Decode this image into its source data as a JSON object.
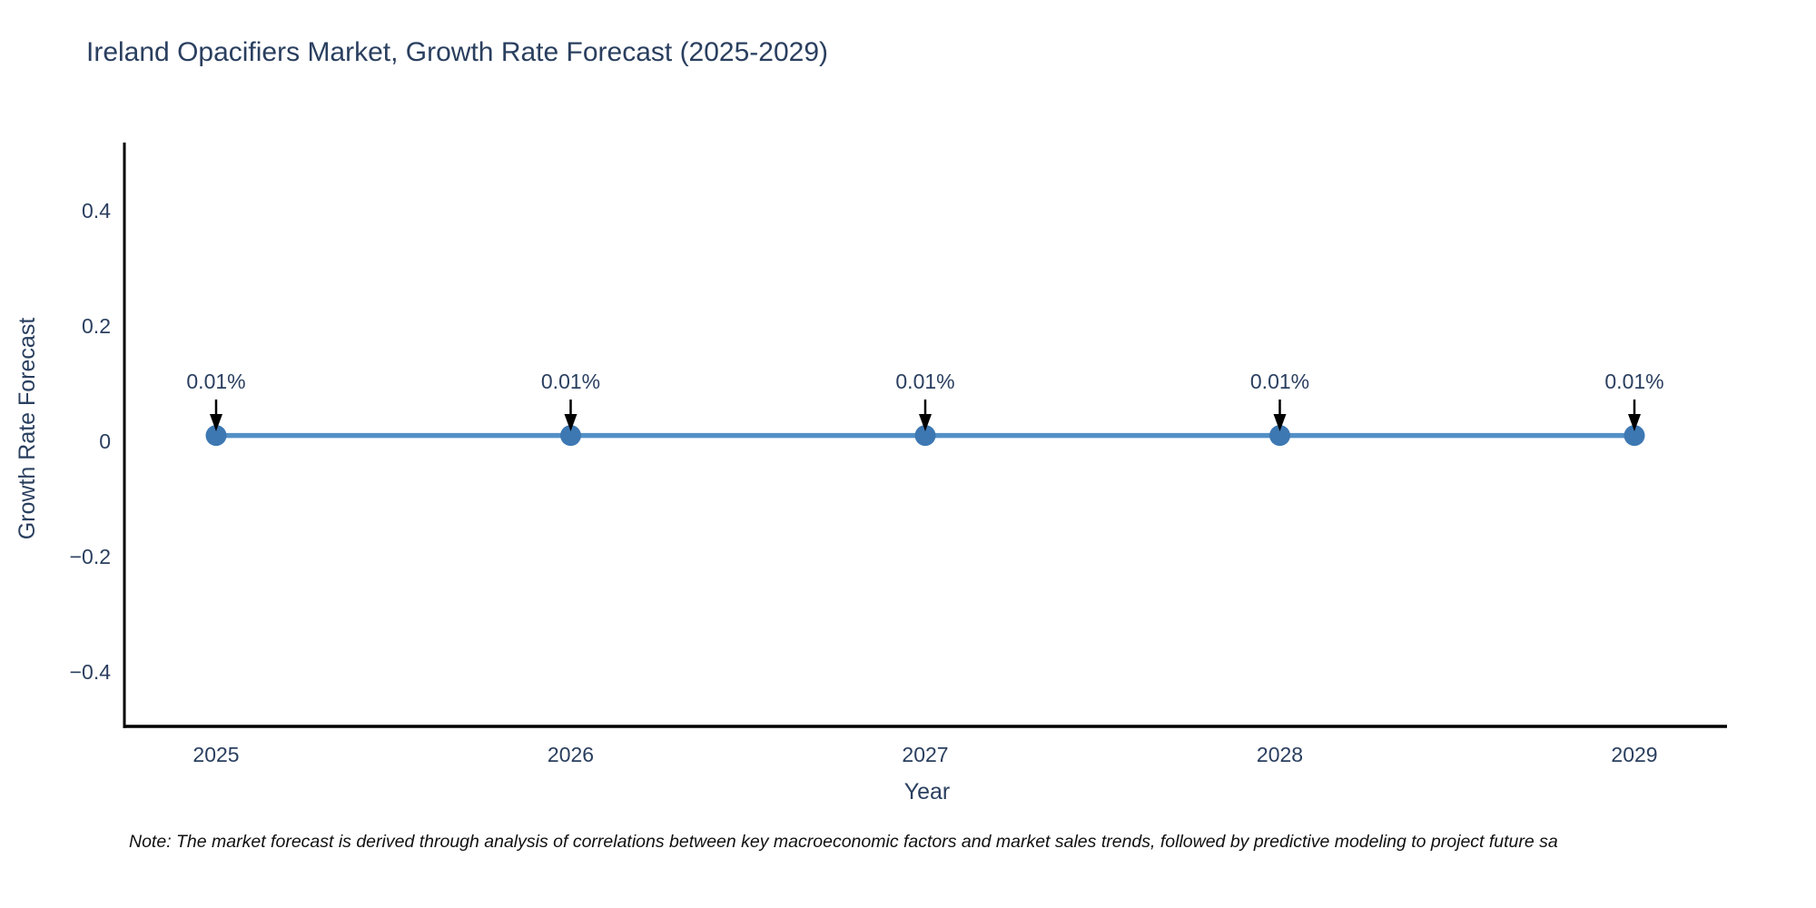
{
  "note": "Note: The market forecast is derived through analysis of correlations between key macroeconomic factors and market sales trends, followed by predictive modeling to project future sa",
  "chart_data": {
    "type": "line",
    "title": "Ireland Opacifiers Market, Growth Rate Forecast (2025-2029)",
    "xlabel": "Year",
    "ylabel": "Growth Rate Forecast",
    "x": [
      2025,
      2026,
      2027,
      2028,
      2029
    ],
    "series": [
      {
        "name": "Growth Rate Forecast",
        "values": [
          0.01,
          0.01,
          0.01,
          0.01,
          0.01
        ],
        "point_labels": [
          "0.01%",
          "0.01%",
          "0.01%",
          "0.01%",
          "0.01%"
        ]
      }
    ],
    "yticks": [
      {
        "value": 0.4,
        "label": "0.4"
      },
      {
        "value": 0.2,
        "label": "0.2"
      },
      {
        "value": 0,
        "label": "0"
      },
      {
        "value": -0.2,
        "label": "−0.2"
      },
      {
        "value": -0.4,
        "label": "−0.4"
      }
    ],
    "ylim": [
      -0.5,
      0.52
    ],
    "grid": false,
    "legend": false,
    "colors": {
      "line": "#5390c6",
      "marker": "#3d78b3",
      "axis": "#000000",
      "tick_label": "#2a3f5f",
      "title": "#2a3f5f",
      "annotation_text": "#2a3f5f",
      "annotation_arrow": "#000000",
      "note_text": "#111111",
      "background": "#ffffff"
    }
  }
}
